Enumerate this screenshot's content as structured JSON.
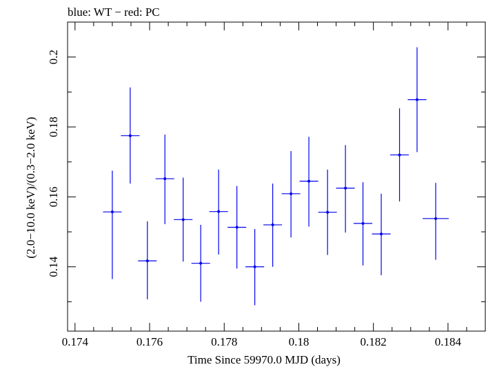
{
  "chart_data": {
    "type": "scatter",
    "title": "blue: WT − red: PC",
    "xlabel": "Time Since 59970.0 MJD (days)",
    "ylabel": "(2.0−10.0 keV)/(0.3−2.0 keV)",
    "xlim": [
      0.1738,
      0.185
    ],
    "ylim": [
      0.1216,
      0.21
    ],
    "xticks": [
      0.174,
      0.176,
      0.178,
      0.18,
      0.182,
      0.184
    ],
    "xtick_labels": [
      "0.174",
      "0.176",
      "0.178",
      "0.18",
      "0.182",
      "0.184"
    ],
    "yticks": [
      0.14,
      0.16,
      0.18,
      0.2
    ],
    "ytick_labels": [
      "0.14",
      "0.16",
      "0.18",
      "0.2"
    ],
    "grid": false,
    "series": [
      {
        "color": "#0000ee",
        "points": [
          {
            "x": 0.175,
            "xerr": 0.00025,
            "y": 0.1557,
            "yerr_low": 0.0192,
            "yerr_high": 0.0118
          },
          {
            "x": 0.17548,
            "xerr": 0.00025,
            "y": 0.1775,
            "yerr_low": 0.0137,
            "yerr_high": 0.0138
          },
          {
            "x": 0.17594,
            "xerr": 0.00025,
            "y": 0.1417,
            "yerr_low": 0.011,
            "yerr_high": 0.0113
          },
          {
            "x": 0.17641,
            "xerr": 0.00025,
            "y": 0.1652,
            "yerr_low": 0.013,
            "yerr_high": 0.0126
          },
          {
            "x": 0.1769,
            "xerr": 0.00025,
            "y": 0.1535,
            "yerr_low": 0.012,
            "yerr_high": 0.012
          },
          {
            "x": 0.17737,
            "xerr": 0.00025,
            "y": 0.141,
            "yerr_low": 0.011,
            "yerr_high": 0.011
          },
          {
            "x": 0.17785,
            "xerr": 0.00025,
            "y": 0.1558,
            "yerr_low": 0.0123,
            "yerr_high": 0.012
          },
          {
            "x": 0.17834,
            "xerr": 0.00025,
            "y": 0.1513,
            "yerr_low": 0.0118,
            "yerr_high": 0.0118
          },
          {
            "x": 0.17882,
            "xerr": 0.00025,
            "y": 0.14,
            "yerr_low": 0.011,
            "yerr_high": 0.0108
          },
          {
            "x": 0.1793,
            "xerr": 0.00025,
            "y": 0.152,
            "yerr_low": 0.012,
            "yerr_high": 0.0118
          },
          {
            "x": 0.17979,
            "xerr": 0.00025,
            "y": 0.1609,
            "yerr_low": 0.0125,
            "yerr_high": 0.0122
          },
          {
            "x": 0.18027,
            "xerr": 0.00025,
            "y": 0.1645,
            "yerr_low": 0.013,
            "yerr_high": 0.0127
          },
          {
            "x": 0.18077,
            "xerr": 0.00025,
            "y": 0.1556,
            "yerr_low": 0.0122,
            "yerr_high": 0.0122
          },
          {
            "x": 0.18125,
            "xerr": 0.00025,
            "y": 0.1625,
            "yerr_low": 0.0127,
            "yerr_high": 0.0123
          },
          {
            "x": 0.18172,
            "xerr": 0.00025,
            "y": 0.1524,
            "yerr_low": 0.012,
            "yerr_high": 0.0118
          },
          {
            "x": 0.18221,
            "xerr": 0.00025,
            "y": 0.1494,
            "yerr_low": 0.0118,
            "yerr_high": 0.0115
          },
          {
            "x": 0.1827,
            "xerr": 0.00025,
            "y": 0.172,
            "yerr_low": 0.0133,
            "yerr_high": 0.0133
          },
          {
            "x": 0.18317,
            "xerr": 0.00025,
            "y": 0.1878,
            "yerr_low": 0.015,
            "yerr_high": 0.015
          },
          {
            "x": 0.18367,
            "xerr": 0.00035,
            "y": 0.1538,
            "yerr_low": 0.0118,
            "yerr_high": 0.0102
          }
        ]
      }
    ]
  }
}
